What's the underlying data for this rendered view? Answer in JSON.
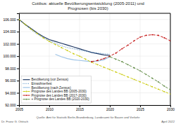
{
  "chart_data": {
    "type": "line",
    "title": "Cottbus: aktuelle Bevölkerungsentwicklung (2005-2011) und\nPrognosen (bis 2030)",
    "annotations": [
      "Dr. Franz G. Ottitsch",
      "Quelle: Amt für Statistik Berlin-Brandenburg, Landesamt für Bauen und Verkehr",
      "April 2022"
    ],
    "x": [
      2005,
      2006,
      2007,
      2008,
      2009,
      2010,
      2011,
      2012,
      2013,
      2014,
      2015,
      2016,
      2017,
      2018,
      2019,
      2020,
      2021,
      2022,
      2023,
      2024,
      2025,
      2026,
      2027,
      2028,
      2029,
      2030
    ],
    "series": [
      {
        "name": "Bevölkerung (vor Zensus)",
        "color": "#1f3864",
        "line_style": "solid",
        "values": [
          106000,
          105200,
          104500,
          103800,
          103200,
          102700,
          102400,
          102100,
          101800,
          101500,
          101200,
          100900,
          100600,
          100400,
          100200,
          100100,
          null,
          null,
          null,
          null,
          null,
          null,
          null,
          null,
          null,
          null
        ]
      },
      {
        "name": "Einwohnerfest",
        "color": "#2e74b5",
        "line_style": "dotted",
        "values": [
          106000,
          105100,
          104300,
          103600,
          103000,
          102500,
          102100,
          101700,
          101400,
          101200,
          101000,
          100800,
          100600,
          100500,
          100400,
          100300,
          null,
          null,
          null,
          null,
          null,
          null,
          null,
          null,
          null,
          null
        ]
      },
      {
        "name": "Bevölkerung (nach Zensus)",
        "color": "#9dc3e6",
        "line_style": "solid",
        "values": [
          null,
          null,
          null,
          null,
          null,
          null,
          100300,
          99900,
          99600,
          99400,
          99300,
          99200,
          99100,
          99200,
          99400,
          99900,
          null,
          null,
          null,
          null,
          null,
          null,
          null,
          null,
          null,
          null
        ]
      },
      {
        "name": "Prognose des Landes BB (2005-2030)",
        "color": "#c8c800",
        "line_style": "dashed",
        "marker": "point",
        "values": [
          106000,
          105200,
          104400,
          103700,
          103000,
          102400,
          101900,
          101400,
          100900,
          100400,
          100000,
          99500,
          99000,
          98600,
          98200,
          97800,
          97400,
          97000,
          96600,
          96200,
          95800,
          95400,
          95000,
          94600,
          94200,
          93800
        ]
      },
      {
        "name": "Prognose des Landes BB (2017-2030)",
        "color": "#c00000",
        "line_style": "dashed",
        "marker": "point",
        "values": [
          null,
          null,
          null,
          null,
          null,
          null,
          null,
          null,
          null,
          null,
          null,
          null,
          99100,
          99300,
          99600,
          100000,
          100500,
          101200,
          101800,
          102500,
          103100,
          103400,
          103500,
          103400,
          103000,
          102500
        ]
      },
      {
        "name": "+ Prognose des Landes BB (2020-2030)",
        "color": "#548235",
        "line_style": "dashed",
        "marker": "point",
        "values": [
          null,
          null,
          null,
          null,
          null,
          null,
          null,
          null,
          null,
          null,
          null,
          null,
          null,
          null,
          null,
          99900,
          99500,
          99100,
          98600,
          98100,
          97600,
          97000,
          96400,
          95800,
          95100,
          94500
        ]
      }
    ],
    "xlim": [
      2005,
      2030
    ],
    "xticks": [
      2005,
      2010,
      2015,
      2020,
      2025,
      2030
    ],
    "ylim": [
      92000,
      107000
    ],
    "yticks": [
      {
        "value": 92000,
        "label": "92.000"
      },
      {
        "value": 94000,
        "label": "94.000"
      },
      {
        "value": 96000,
        "label": "96.000"
      },
      {
        "value": 98000,
        "label": "98.000"
      },
      {
        "value": 100000,
        "label": "100.000"
      },
      {
        "value": 102000,
        "label": "102.000"
      },
      {
        "value": 104000,
        "label": "104.000"
      },
      {
        "value": 106000,
        "label": "106.000"
      }
    ],
    "grid": true,
    "legend": "lower left"
  }
}
